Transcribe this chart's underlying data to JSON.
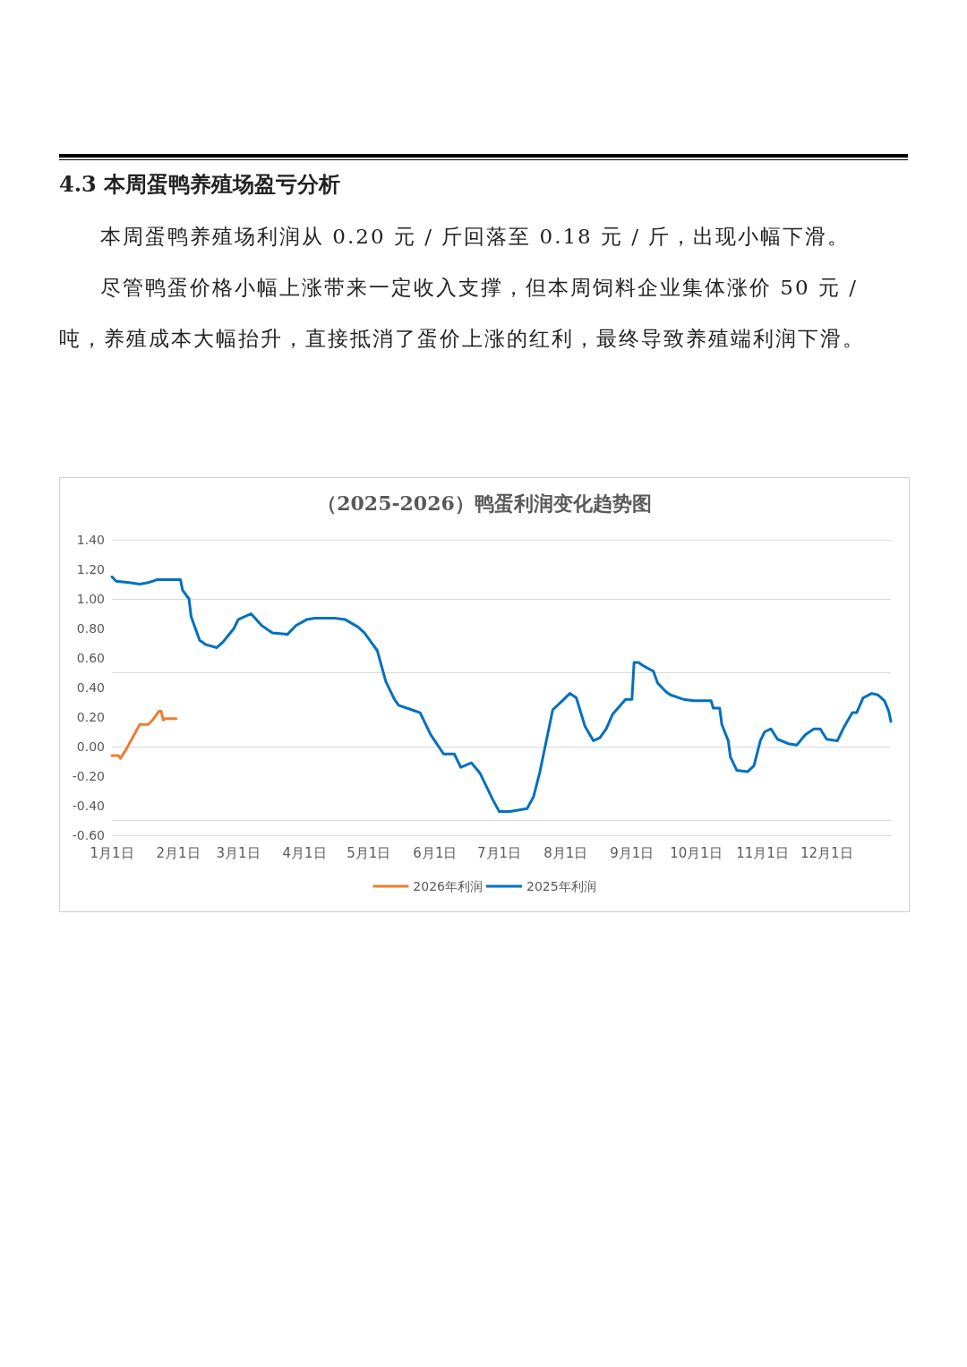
{
  "chart_data": {
    "type": "line",
    "title": "（2025-2026）鸭蛋利润变化趋势图",
    "annotations": [
      "4.3 本周蛋鸭养殖场盈亏分析",
      "本周蛋鸭养殖场利润从 0.20 元 / 斤回落至 0.18 元 / 斤，出现小幅下滑。",
      "尽管鸭蛋价格小幅上涨带来一定收入支撑，但本周饲料企业集体涨价 50 元 / 吨，养殖成本大幅抬升，直接抵消了蛋价上涨的红利，最终导致养殖端利润下滑。"
    ],
    "xlim": [
      "--01-01",
      "--12-31"
    ],
    "xticks": [
      {
        "value": "--01-01",
        "label": "1月1日"
      },
      {
        "value": "--02-01",
        "label": "2月1日"
      },
      {
        "value": "--03-01",
        "label": "3月1日"
      },
      {
        "value": "--04-01",
        "label": "4月1日"
      },
      {
        "value": "--05-01",
        "label": "5月1日"
      },
      {
        "value": "--06-01",
        "label": "6月1日"
      },
      {
        "value": "--07-01",
        "label": "7月1日"
      },
      {
        "value": "--08-01",
        "label": "8月1日"
      },
      {
        "value": "--09-01",
        "label": "9月1日"
      },
      {
        "value": "--10-01",
        "label": "10月1日"
      },
      {
        "value": "--11-01",
        "label": "11月1日"
      },
      {
        "value": "--12-01",
        "label": "12月1日"
      }
    ],
    "ylim": [
      -0.6,
      1.4
    ],
    "yticks": [
      {
        "value": -0.6,
        "label": "-0.60"
      },
      {
        "value": -0.4,
        "label": "-0.40"
      },
      {
        "value": -0.2,
        "label": "-0.20"
      },
      {
        "value": 0,
        "label": "0.00"
      },
      {
        "value": 0.2,
        "label": "0.20"
      },
      {
        "value": 0.4,
        "label": "0.40"
      },
      {
        "value": 0.6,
        "label": "0.60"
      },
      {
        "value": 0.8,
        "label": "0.80"
      },
      {
        "value": 1.0,
        "label": "1.00"
      },
      {
        "value": 1.2,
        "label": "1.20"
      },
      {
        "value": 1.4,
        "label": "1.40"
      }
    ],
    "grid": "y",
    "legend": "bottom",
    "marker": "none",
    "line_style": "solid",
    "series": [
      {
        "name": "2026年利润",
        "color": "#ed7d31",
        "x": [
          "--01-01",
          "--01-04",
          "--01-05",
          "--01-08",
          "--01-11",
          "--01-14",
          "--01-18",
          "--01-20",
          "--01-23",
          "--01-24",
          "--01-25",
          "--01-26",
          "--01-31"
        ],
        "values": [
          -0.06,
          -0.06,
          -0.08,
          -0.01,
          0.07,
          0.15,
          0.15,
          0.18,
          0.24,
          0.24,
          0.18,
          0.19,
          0.19
        ]
      },
      {
        "name": "2025年利润",
        "color": "#0070c0",
        "x": [
          "--01-01",
          "--01-03",
          "--01-09",
          "--01-14",
          "--01-18",
          "--01-22",
          "--02-02",
          "--02-03",
          "--02-06",
          "--02-07",
          "--02-11",
          "--02-14",
          "--02-19",
          "--02-22",
          "--02-27",
          "--03-01",
          "--03-07",
          "--03-12",
          "--03-17",
          "--03-24",
          "--03-28",
          "--04-02",
          "--04-06",
          "--04-15",
          "--04-20",
          "--04-26",
          "--04-29",
          "--05-02",
          "--05-05",
          "--05-09",
          "--05-13",
          "--05-15",
          "--05-21",
          "--05-25",
          "--05-30",
          "--06-05",
          "--06-10",
          "--06-13",
          "--06-18",
          "--06-22",
          "--06-28",
          "--07-01",
          "--07-06",
          "--07-14",
          "--07-17",
          "--07-20",
          "--07-26",
          "--07-29",
          "--08-03",
          "--08-06",
          "--08-10",
          "--08-14",
          "--08-17",
          "--08-20",
          "--08-23",
          "--08-29",
          "--09-01",
          "--09-02",
          "--09-04",
          "--09-06",
          "--09-11",
          "--09-13",
          "--09-17",
          "--09-19",
          "--09-25",
          "--09-30",
          "--10-08",
          "--10-09",
          "--10-12",
          "--10-13",
          "--10-16",
          "--10-17",
          "--10-20",
          "--10-25",
          "--10-28",
          "--10-31",
          "--11-02",
          "--11-05",
          "--11-08",
          "--11-13",
          "--11-17",
          "--11-21",
          "--11-25",
          "--11-28",
          "--12-01",
          "--12-06",
          "--12-09",
          "--12-13",
          "--12-15",
          "--12-18",
          "--12-22",
          "--12-25",
          "--12-28",
          "--12-30",
          "--12-31"
        ],
        "values": [
          1.15,
          1.12,
          1.11,
          1.1,
          1.11,
          1.13,
          1.13,
          1.06,
          1.0,
          0.88,
          0.72,
          0.69,
          0.67,
          0.71,
          0.8,
          0.86,
          0.9,
          0.82,
          0.77,
          0.76,
          0.82,
          0.86,
          0.87,
          0.87,
          0.86,
          0.81,
          0.77,
          0.71,
          0.65,
          0.44,
          0.32,
          0.28,
          0.25,
          0.23,
          0.08,
          -0.05,
          -0.05,
          -0.14,
          -0.11,
          -0.18,
          -0.36,
          -0.44,
          -0.44,
          -0.42,
          -0.34,
          -0.17,
          0.25,
          0.29,
          0.36,
          0.33,
          0.14,
          0.04,
          0.06,
          0.12,
          0.22,
          0.32,
          0.32,
          0.57,
          0.57,
          0.55,
          0.51,
          0.43,
          0.37,
          0.35,
          0.32,
          0.31,
          0.31,
          0.26,
          0.26,
          0.15,
          0.04,
          -0.07,
          -0.16,
          -0.17,
          -0.13,
          0.04,
          0.1,
          0.12,
          0.05,
          0.02,
          0.01,
          0.08,
          0.12,
          0.12,
          0.05,
          0.04,
          0.13,
          0.23,
          0.23,
          0.33,
          0.36,
          0.35,
          0.31,
          0.24,
          0.17
        ]
      }
    ]
  }
}
